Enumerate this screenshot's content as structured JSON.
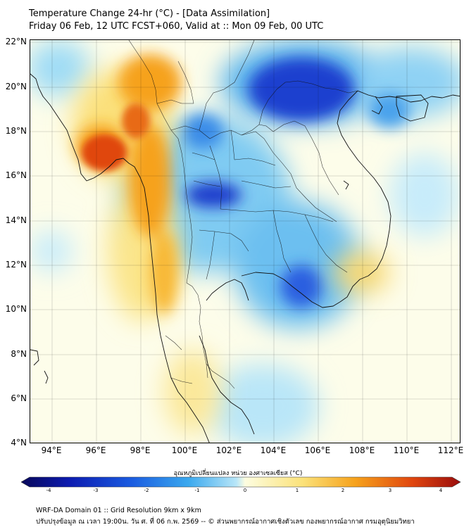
{
  "header": {
    "title": "Temperature Change 24-hr (°C) - [Data Assimilation]",
    "subtitle": "Friday 06 Feb, 12 UTC FCST+060, Valid at :: Mon 09 Feb, 00 UTC"
  },
  "map": {
    "lat_labels": [
      "22°N",
      "20°N",
      "18°N",
      "16°N",
      "14°N",
      "12°N",
      "10°N",
      "8°N",
      "6°N",
      "4°N"
    ],
    "lon_labels": [
      "94°E",
      "96°E",
      "98°E",
      "100°E",
      "102°E",
      "104°E",
      "106°E",
      "108°E",
      "110°E",
      "112°E"
    ]
  },
  "colorbar": {
    "label": "อุณหภูมิเปลี่ยนแปลง หน่วย องศาเซลเซียส (°C)",
    "ticks": [
      "-4",
      "-3",
      "-2",
      "-1",
      "0",
      "1",
      "2",
      "3",
      "4"
    ],
    "colors": [
      "#08085a",
      "#0c1bb0",
      "#1a5be0",
      "#3aa8ee",
      "#b8e6f8",
      "#fdfde0",
      "#fbe27a",
      "#f6a21c",
      "#e0460e",
      "#9a0d0d"
    ]
  },
  "footer": {
    "line1": "WRF-DA Domain 01 :: Grid Resolution 9km x 9km",
    "line2": "ปรับปรุงข้อมูล ณ เวลา 19:00น. วัน ศ. ที่ 06 ก.พ. 2569 -- © ส่วนพยากรณ์อากาศเชิงตัวเลข กองพยากรณ์อากาศ กรมอุตุนิยมวิทยา"
  }
}
